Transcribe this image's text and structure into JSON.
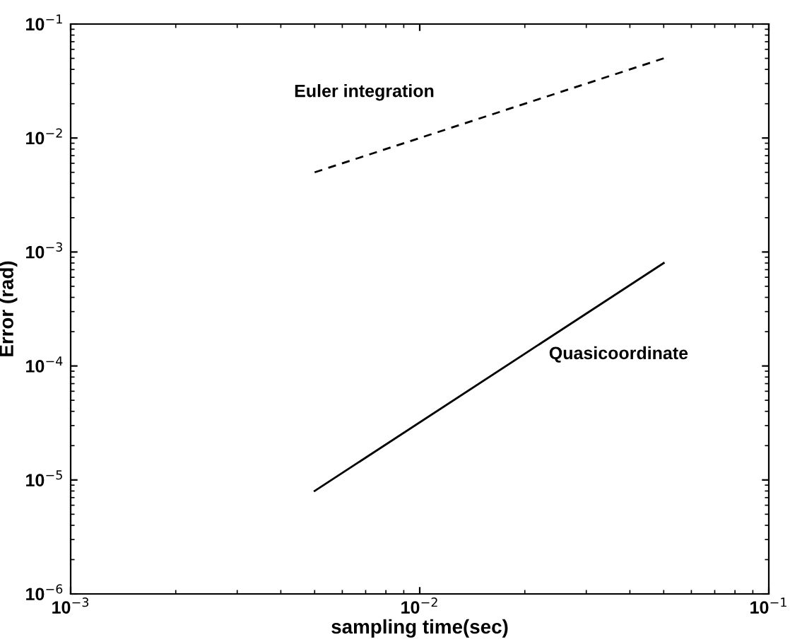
{
  "chart_data": {
    "type": "line",
    "xlabel": "sampling time(sec)",
    "ylabel": "Error (rad)",
    "log": "xy",
    "xlim": [
      0.001,
      0.1
    ],
    "ylim": [
      1e-06,
      0.1
    ],
    "xticks": [
      {
        "value": 0.001,
        "label": "10$^{−3}$"
      },
      {
        "value": 0.01,
        "label": "10$^{−2}$"
      },
      {
        "value": 0.1,
        "label": "10$^{−1}$"
      }
    ],
    "yticks": [
      {
        "value": 1e-06,
        "label": "10$^{−6}$"
      },
      {
        "value": 1e-05,
        "label": "10$^{−5}$"
      },
      {
        "value": 0.0001,
        "label": "10$^{−4}$"
      },
      {
        "value": 0.001,
        "label": "10$^{−3}$"
      },
      {
        "value": 0.01,
        "label": "10$^{−2}$"
      },
      {
        "value": 0.1,
        "label": "10$^{−1}$"
      }
    ],
    "grid": false,
    "legend": false,
    "x": [
      0.005,
      0.05
    ],
    "series": [
      {
        "color": "#000000",
        "line_style": "dashed",
        "values": [
          0.005,
          0.05
        ]
      },
      {
        "color": "#000000",
        "line_style": "solid",
        "values": [
          8e-06,
          0.0008
        ]
      }
    ],
    "annotations": [
      "Euler integration",
      "Quasicoordinate"
    ]
  }
}
